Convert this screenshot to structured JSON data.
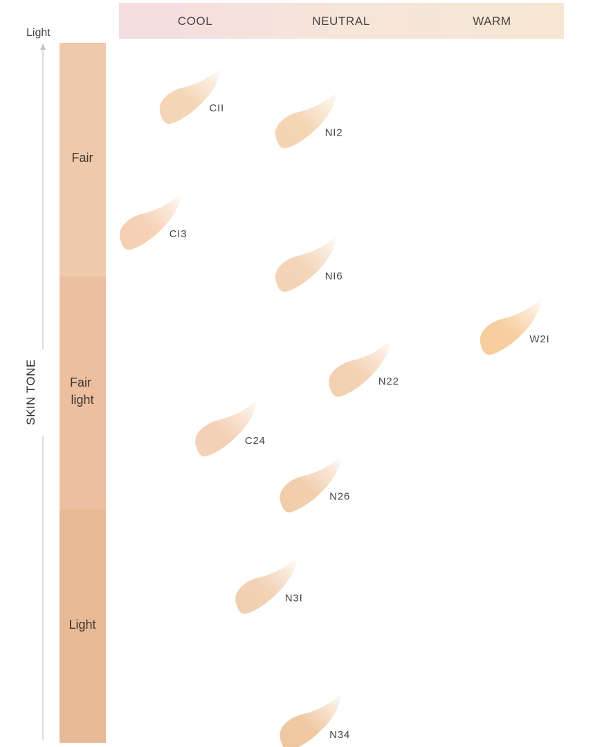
{
  "chart_data": {
    "type": "scatter",
    "title": "",
    "x_axis": {
      "categories": [
        "COOL",
        "NEUTRAL",
        "WARM"
      ],
      "label": ""
    },
    "y_axis": {
      "title": "SKIN TONE",
      "top_label": "Light",
      "bands": [
        "Fair",
        "Fair light",
        "Light"
      ]
    },
    "grid": false,
    "legend": "none",
    "points": [
      {
        "label": "C11",
        "undertone": "COOL",
        "undertone_position": 0.15,
        "skin_tone_band": "Fair",
        "depth": 0.09,
        "color": "#f4d4b3"
      },
      {
        "label": "N12",
        "undertone": "NEUTRAL",
        "undertone_position": 0.41,
        "skin_tone_band": "Fair",
        "depth": 0.125,
        "color": "#f4d4b1"
      },
      {
        "label": "C13",
        "undertone": "COOL",
        "undertone_position": 0.06,
        "skin_tone_band": "Fair",
        "depth": 0.27,
        "color": "#f6cfb2"
      },
      {
        "label": "N16",
        "undertone": "NEUTRAL",
        "undertone_position": 0.41,
        "skin_tone_band": "Fair",
        "depth": 0.33,
        "color": "#f3d3b4"
      },
      {
        "label": "W21",
        "undertone": "WARM",
        "undertone_position": 0.87,
        "skin_tone_band": "Fair light",
        "depth": 0.42,
        "color": "#f6cc9c"
      },
      {
        "label": "N22",
        "undertone": "NEUTRAL",
        "undertone_position": 0.53,
        "skin_tone_band": "Fair light",
        "depth": 0.48,
        "color": "#f3cfaf"
      },
      {
        "label": "C24",
        "undertone": "COOL",
        "undertone_position": 0.23,
        "skin_tone_band": "Fair light",
        "depth": 0.565,
        "color": "#f4cfb3"
      },
      {
        "label": "N26",
        "undertone": "NEUTRAL",
        "undertone_position": 0.42,
        "skin_tone_band": "Fair light",
        "depth": 0.645,
        "color": "#f2cca9"
      },
      {
        "label": "N31",
        "undertone": "NEUTRAL",
        "undertone_position": 0.32,
        "skin_tone_band": "Light",
        "depth": 0.79,
        "color": "#f1cfb0"
      },
      {
        "label": "N34",
        "undertone": "NEUTRAL",
        "undertone_position": 0.42,
        "skin_tone_band": "Light",
        "depth": 0.985,
        "color": "#efc69e"
      }
    ],
    "display_labels": {
      "C11": "CII",
      "N12": "NI2",
      "C13": "CI3",
      "N16": "NI6",
      "W21": "W2I",
      "N22": "N22",
      "C24": "C24",
      "N26": "N26",
      "N31": "N3I",
      "N34": "N34"
    }
  },
  "colors": {
    "band_fair": "#efc9ab",
    "band_fair_light": "#ebbfa0",
    "band_light": "#e8b995",
    "header_cool": "#f4dde0",
    "header_neutral": "#f6e5da",
    "header_warm": "#f6e6d2",
    "axis_line": "#c8c2bd"
  }
}
